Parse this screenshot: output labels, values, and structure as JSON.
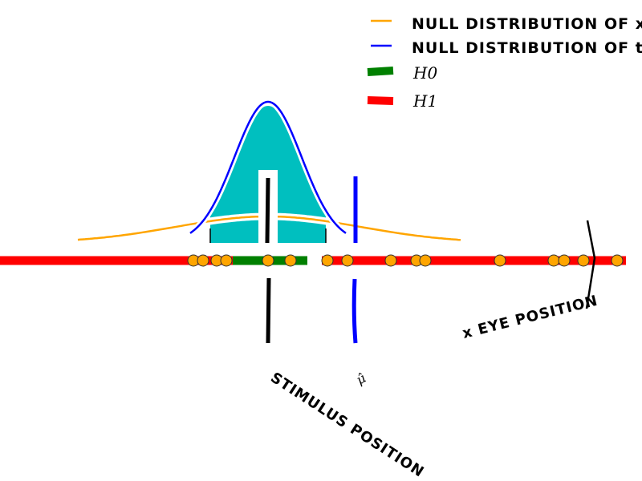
{
  "chart_data": {
    "type": "line",
    "title": "",
    "xlabel": "",
    "ylabel": "",
    "legend": {
      "placement": "top-right",
      "entries": [
        {
          "label": "NULL DISTRIBUTION OF x",
          "color": "#ffa500"
        },
        {
          "label": "NULL DISTRIBUTION OF t",
          "color": "#0000ff"
        },
        {
          "label": "H0",
          "color": "#008000"
        },
        {
          "label": "H1",
          "color": "#ff0000"
        }
      ]
    },
    "annotations": {
      "stimulus": "STIMULUS POSITION",
      "mu_hat": "μ̂",
      "eye": "x EYE POSITION"
    },
    "stimulus_position": 0,
    "mu_hat_position": 2.18,
    "eye_position": 8.14,
    "h0_interval": [
      -0.88,
      0.98
    ],
    "samples": [
      -1.86,
      -1.62,
      -1.28,
      -1.04,
      0,
      0.56,
      1.48,
      1.98,
      3.06,
      3.7,
      3.92,
      5.78,
      7.12,
      7.38,
      7.86,
      8.7
    ],
    "colors": {
      "fill": "#00bfbf",
      "null_x": "#ffa500",
      "null_t": "#0000ff",
      "h0": "#008000",
      "h1": "#ff0000",
      "sample": "#ffa500"
    }
  }
}
